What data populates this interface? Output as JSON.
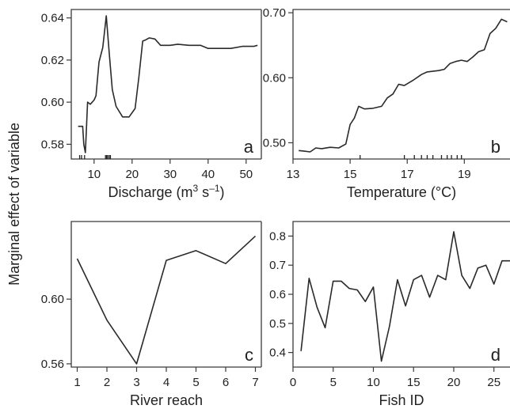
{
  "figure": {
    "ylabel": "Marginal effect of variable"
  },
  "chart_data": [
    {
      "type": "line",
      "panel": "a",
      "xlabel": "Discharge (m",
      "xlabel_sup": "3",
      "xlabel_mid": " s",
      "xlabel_sup2": "–1",
      "xlabel_end": ")",
      "xlim": [
        4,
        54
      ],
      "ylim": [
        0.573,
        0.644
      ],
      "xticks": [
        10,
        20,
        30,
        40,
        50
      ],
      "xtick_labels": [
        "10",
        "20",
        "30",
        "40",
        "50"
      ],
      "yticks": [
        0.58,
        0.6,
        0.62,
        0.64
      ],
      "ytick_labels": [
        "0.58",
        "0.60",
        "0.62",
        "0.64"
      ],
      "rug": [
        6.2,
        6.7,
        7.5,
        13.0,
        13.3,
        13.6,
        14.0,
        14.3
      ],
      "x": [
        5.8,
        7.0,
        7.3,
        7.7,
        8.3,
        9.0,
        10.0,
        10.5,
        11.3,
        12.3,
        13.2,
        14.0,
        14.8,
        15.8,
        17.5,
        19.2,
        20.8,
        21.8,
        22.8,
        23.5,
        24.5,
        26.0,
        27.5,
        30.0,
        32.0,
        35.0,
        38.0,
        40.0,
        43.0,
        46.0,
        49.0,
        52.0,
        53.0
      ],
      "values": [
        0.5885,
        0.5885,
        0.58,
        0.576,
        0.6,
        0.599,
        0.601,
        0.603,
        0.619,
        0.626,
        0.641,
        0.623,
        0.606,
        0.598,
        0.593,
        0.593,
        0.597,
        0.612,
        0.629,
        0.6295,
        0.6305,
        0.63,
        0.627,
        0.627,
        0.6275,
        0.627,
        0.627,
        0.6255,
        0.6255,
        0.6255,
        0.6265,
        0.6265,
        0.627
      ],
      "letter": "a"
    },
    {
      "type": "line",
      "panel": "b",
      "xlabel": "Temperature (°C)",
      "xlim": [
        13,
        20.6
      ],
      "ylim": [
        0.475,
        0.705
      ],
      "xticks": [
        13,
        15,
        17,
        19
      ],
      "xtick_labels": [
        "13",
        "15",
        "17",
        "19"
      ],
      "yticks": [
        0.5,
        0.6,
        0.7
      ],
      "ytick_labels": [
        "0.50",
        "0.60",
        "0.70"
      ],
      "rug": [
        15.35,
        16.9,
        17.25,
        17.5,
        17.7,
        17.9,
        18.2,
        18.4,
        18.55,
        18.75,
        18.9
      ],
      "x": [
        13.2,
        13.4,
        13.6,
        13.8,
        14.0,
        14.3,
        14.6,
        14.85,
        15.0,
        15.15,
        15.3,
        15.5,
        15.8,
        16.1,
        16.3,
        16.5,
        16.7,
        16.9,
        17.2,
        17.5,
        17.7,
        17.9,
        18.1,
        18.3,
        18.5,
        18.7,
        18.9,
        19.1,
        19.3,
        19.5,
        19.7,
        19.9,
        20.1,
        20.3,
        20.5
      ],
      "values": [
        0.488,
        0.487,
        0.486,
        0.492,
        0.491,
        0.493,
        0.492,
        0.498,
        0.528,
        0.538,
        0.556,
        0.552,
        0.553,
        0.556,
        0.569,
        0.575,
        0.59,
        0.588,
        0.596,
        0.605,
        0.609,
        0.61,
        0.611,
        0.613,
        0.622,
        0.625,
        0.627,
        0.625,
        0.632,
        0.64,
        0.643,
        0.668,
        0.676,
        0.69,
        0.686
      ],
      "letter": "b"
    },
    {
      "type": "line",
      "panel": "c",
      "xlabel": "River reach",
      "xlim": [
        0.8,
        7.2
      ],
      "ylim": [
        0.558,
        0.648
      ],
      "xticks": [
        1,
        2,
        3,
        4,
        5,
        6,
        7
      ],
      "xtick_labels": [
        "1",
        "2",
        "3",
        "4",
        "5",
        "6",
        "7"
      ],
      "yticks": [
        0.56,
        0.6
      ],
      "ytick_labels": [
        "0.56",
        "0.60"
      ],
      "x": [
        1,
        2,
        3,
        4,
        5,
        6,
        7
      ],
      "values": [
        0.625,
        0.587,
        0.56,
        0.624,
        0.63,
        0.622,
        0.639
      ],
      "letter": "c"
    },
    {
      "type": "line",
      "panel": "d",
      "xlabel": "Fish ID",
      "xlim": [
        0,
        27
      ],
      "ylim": [
        0.35,
        0.85
      ],
      "xticks": [
        0,
        5,
        10,
        15,
        20,
        25
      ],
      "xtick_labels": [
        "0",
        "5",
        "10",
        "15",
        "20",
        "25"
      ],
      "yticks": [
        0.4,
        0.5,
        0.6,
        0.7,
        0.8
      ],
      "ytick_labels": [
        "0.4",
        "0.5",
        "0.6",
        "0.7",
        "0.8"
      ],
      "x": [
        1,
        2,
        3,
        4,
        5,
        6,
        7,
        8,
        9,
        10,
        11,
        12,
        13,
        14,
        15,
        16,
        17,
        18,
        19,
        20,
        21,
        22,
        23,
        24,
        25,
        26,
        27
      ],
      "values": [
        0.405,
        0.655,
        0.555,
        0.485,
        0.645,
        0.645,
        0.62,
        0.615,
        0.575,
        0.625,
        0.37,
        0.49,
        0.65,
        0.56,
        0.65,
        0.665,
        0.59,
        0.665,
        0.65,
        0.815,
        0.665,
        0.62,
        0.69,
        0.7,
        0.635,
        0.715,
        0.715
      ],
      "letter": "d"
    }
  ]
}
